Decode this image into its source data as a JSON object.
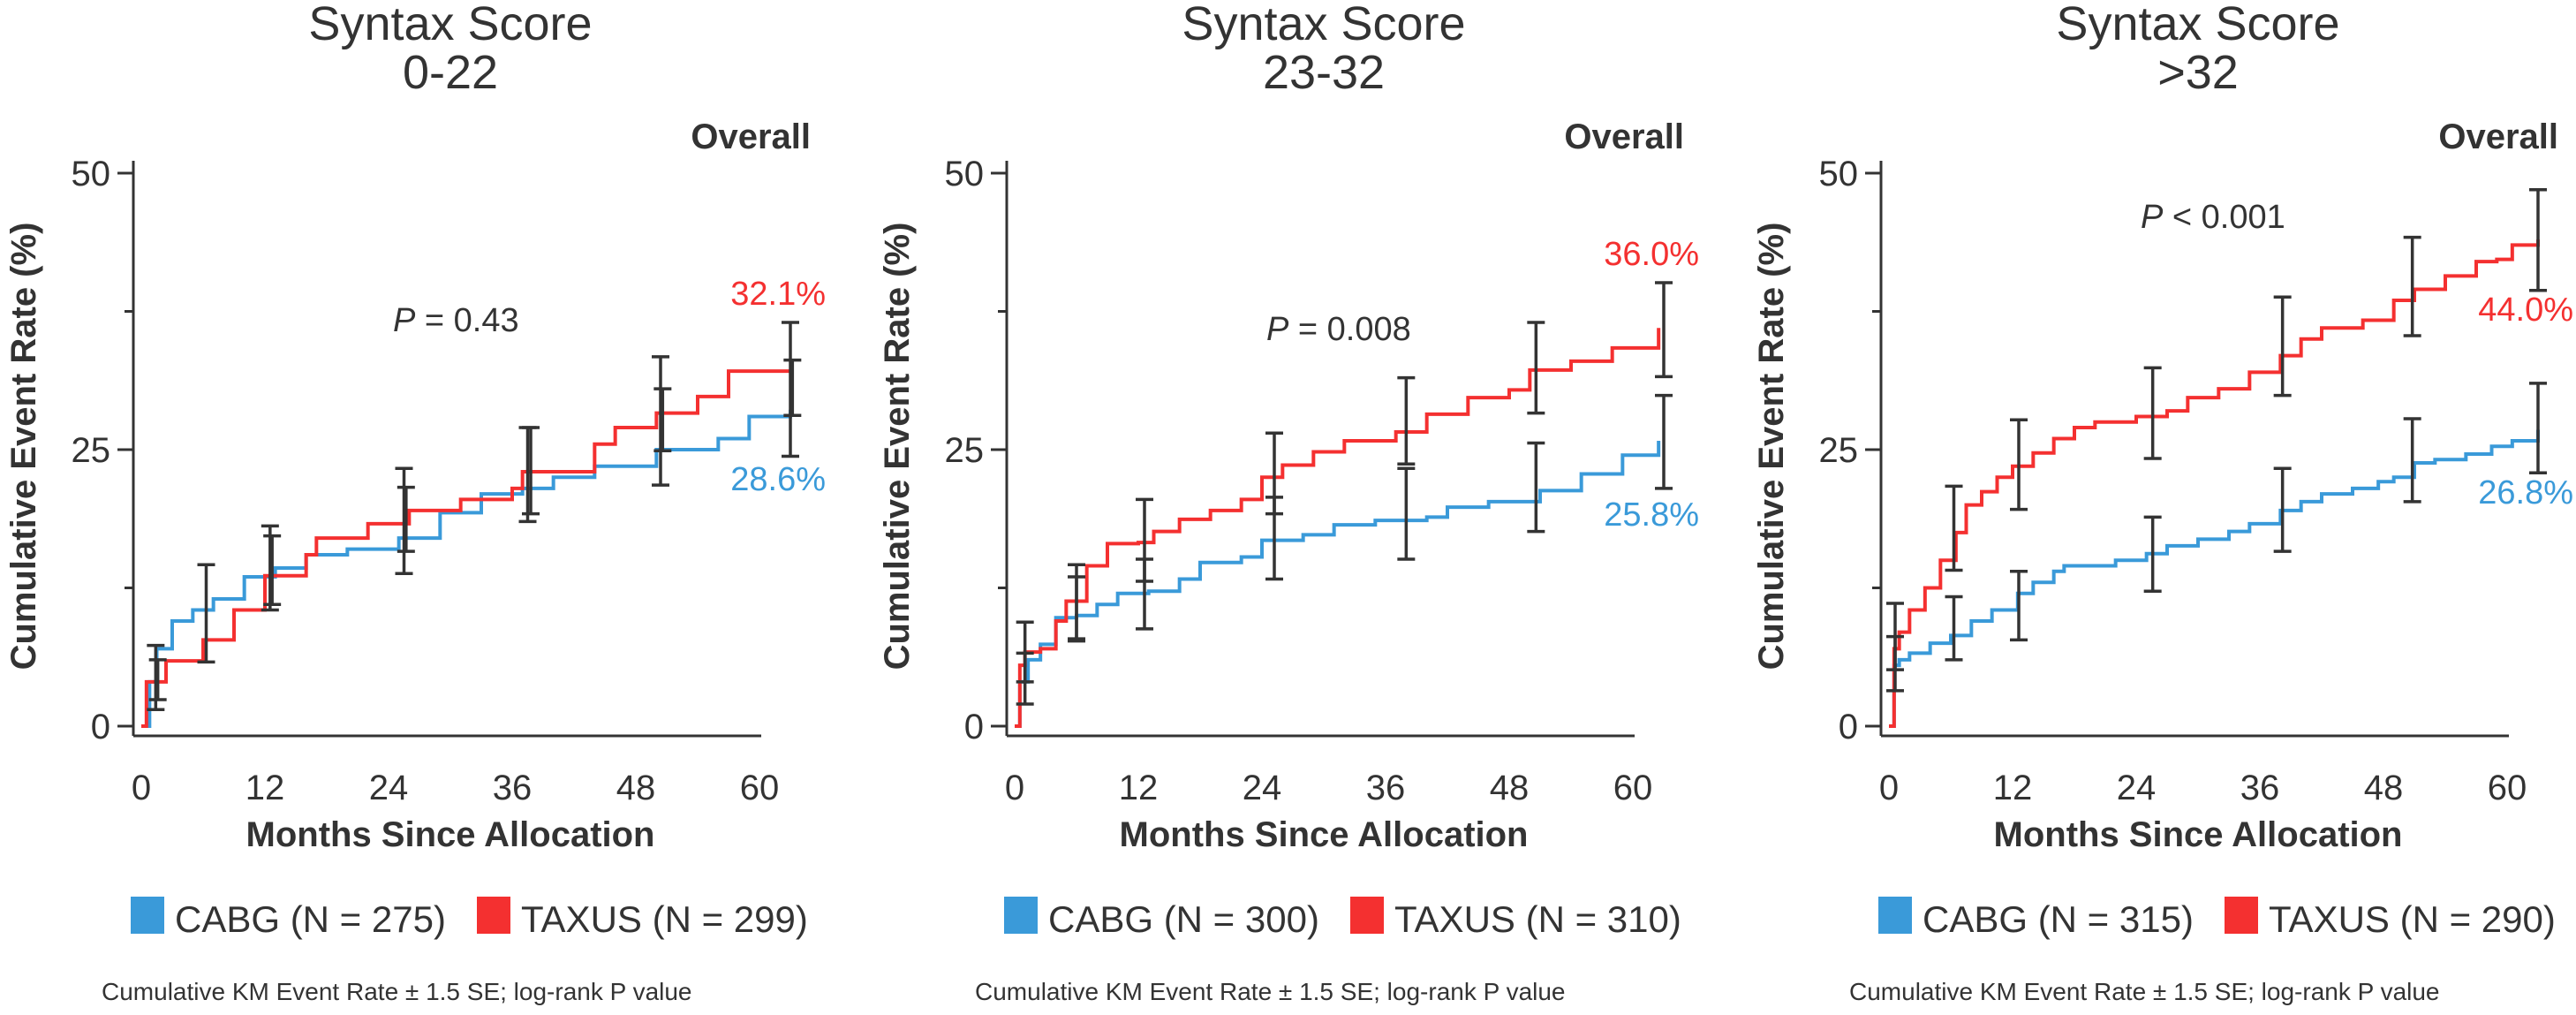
{
  "colors": {
    "cabg": "#3a9ad9",
    "taxus": "#f43030",
    "text": "#333333"
  },
  "chart_data": [
    {
      "type": "line",
      "subtype": "kaplan-meier-step",
      "title": "Syntax Score",
      "subtitle": "0-22",
      "corner_label": "Overall",
      "xlabel": "Months Since Allocation",
      "ylabel": "Cumulative Event Rate (%)",
      "xlim": [
        0,
        60
      ],
      "ylim": [
        0,
        50
      ],
      "xticks": [
        "0",
        "12",
        "24",
        "36",
        "48",
        "60"
      ],
      "xtick_values": [
        0,
        12,
        24,
        36,
        48,
        60
      ],
      "yticks": [
        "0",
        "25",
        "50"
      ],
      "ytick_values": [
        0,
        25,
        50
      ],
      "yminor_ticks": [
        12.5,
        37.5
      ],
      "p_label": "P",
      "p_text": " = 0.43",
      "legend": [
        {
          "name": "CABG (N = 275)",
          "color": "#3a9ad9"
        },
        {
          "name": "TAXUS (N = 299)",
          "color": "#f43030"
        }
      ],
      "footnote": "Cumulative KM Event Rate ± 1.5 SE; log-rank P value",
      "series": [
        {
          "name": "CABG",
          "color": "#3a9ad9",
          "end_label": "28.6%",
          "points": [
            [
              0,
              0
            ],
            [
              0.8,
              4
            ],
            [
              1.5,
              7
            ],
            [
              3,
              9.5
            ],
            [
              5,
              10.5
            ],
            [
              7,
              11.5
            ],
            [
              10,
              13.5
            ],
            [
              13,
              14.3
            ],
            [
              16,
              15.5
            ],
            [
              20,
              16
            ],
            [
              25,
              17
            ],
            [
              29,
              19.3
            ],
            [
              33,
              21
            ],
            [
              37,
              21.5
            ],
            [
              40,
              22.5
            ],
            [
              44,
              23.5
            ],
            [
              50,
              25
            ],
            [
              56,
              26
            ],
            [
              59,
              28
            ],
            [
              63,
              28.6
            ]
          ],
          "error_bars": [
            [
              1.4,
              1.5,
              7.3
            ],
            [
              6.3,
              5.8,
              14.6
            ],
            [
              12.5,
              10.5,
              18.1
            ],
            [
              25.5,
              13.8,
              23.3
            ],
            [
              37.5,
              18.5,
              27.0
            ],
            [
              50.4,
              21.8,
              33.4
            ],
            [
              63,
              24.4,
              36.5
            ]
          ]
        },
        {
          "name": "TAXUS",
          "color": "#f43030",
          "end_label": "32.1%",
          "points": [
            [
              0,
              0
            ],
            [
              0.5,
              4
            ],
            [
              2.4,
              5.9
            ],
            [
              6,
              7.8
            ],
            [
              9,
              10.5
            ],
            [
              12,
              13.6
            ],
            [
              16,
              15.5
            ],
            [
              17,
              17
            ],
            [
              22,
              18.3
            ],
            [
              26,
              19.5
            ],
            [
              31,
              20.5
            ],
            [
              36,
              21.5
            ],
            [
              37,
              23
            ],
            [
              39,
              23
            ],
            [
              44,
              25.5
            ],
            [
              46,
              27
            ],
            [
              50,
              28.3
            ],
            [
              54,
              29.8
            ],
            [
              57,
              32.1
            ],
            [
              63,
              32.1
            ]
          ],
          "error_bars": [
            [
              1.6,
              2.4,
              6.0
            ],
            [
              12.7,
              11.0,
              17.2
            ],
            [
              25.7,
              15.8,
              21.6
            ],
            [
              37.8,
              19.2,
              27.0
            ],
            [
              50.6,
              24.9,
              30.5
            ],
            [
              63.2,
              28.1,
              33.1
            ]
          ]
        }
      ]
    },
    {
      "type": "line",
      "subtype": "kaplan-meier-step",
      "title": "Syntax Score",
      "subtitle": "23-32",
      "corner_label": "Overall",
      "xlabel": "Months Since Allocation",
      "ylabel": "Cumulative Event Rate (%)",
      "xlim": [
        0,
        60
      ],
      "ylim": [
        0,
        50
      ],
      "xticks": [
        "0",
        "12",
        "24",
        "36",
        "48",
        "60"
      ],
      "xtick_values": [
        0,
        12,
        24,
        36,
        48,
        60
      ],
      "yticks": [
        "0",
        "25",
        "50"
      ],
      "ytick_values": [
        0,
        25,
        50
      ],
      "yminor_ticks": [
        12.5,
        37.5
      ],
      "p_label": "P",
      "p_text": " = 0.008",
      "legend": [
        {
          "name": "CABG (N = 300)",
          "color": "#3a9ad9"
        },
        {
          "name": "TAXUS (N = 310)",
          "color": "#f43030"
        }
      ],
      "footnote": "Cumulative KM Event Rate ± 1.5 SE; log-rank P value",
      "series": [
        {
          "name": "CABG",
          "color": "#3a9ad9",
          "end_label": "25.8%",
          "points": [
            [
              0,
              0
            ],
            [
              0.5,
              4
            ],
            [
              1.3,
              6
            ],
            [
              2.5,
              7.4
            ],
            [
              4,
              9.8
            ],
            [
              6,
              10
            ],
            [
              8,
              11
            ],
            [
              10,
              12
            ],
            [
              13,
              12.2
            ],
            [
              16,
              13.3
            ],
            [
              18,
              14.8
            ],
            [
              22,
              15.3
            ],
            [
              24,
              16.8
            ],
            [
              28,
              17.3
            ],
            [
              31,
              18.2
            ],
            [
              35,
              18.6
            ],
            [
              40,
              18.9
            ],
            [
              42,
              19.8
            ],
            [
              46,
              20.3
            ],
            [
              51,
              21.3
            ],
            [
              55,
              22.8
            ],
            [
              59,
              24.5
            ],
            [
              62.5,
              25.8
            ]
          ],
          "error_bars": [
            [
              1,
              4.0,
              6.6
            ],
            [
              6,
              7.9,
              13.5
            ],
            [
              12.6,
              13.1,
              15.1
            ],
            [
              25.2,
              19.2,
              20.7
            ],
            [
              38,
              15.1,
              23.3
            ],
            [
              50.6,
              17.6,
              25.6
            ],
            [
              63,
              21.5,
              29.9
            ]
          ]
        },
        {
          "name": "TAXUS",
          "color": "#f43030",
          "end_label": "36.0%",
          "points": [
            [
              0,
              0
            ],
            [
              0.5,
              5.5
            ],
            [
              1,
              6.7
            ],
            [
              2.5,
              7
            ],
            [
              4,
              9.5
            ],
            [
              5,
              11.3
            ],
            [
              6.5,
              11.3
            ],
            [
              7,
              14.5
            ],
            [
              9,
              16.5
            ],
            [
              12,
              16.6
            ],
            [
              13.5,
              17.6
            ],
            [
              16,
              18.7
            ],
            [
              19,
              19.5
            ],
            [
              22,
              20.5
            ],
            [
              24,
              22.5
            ],
            [
              26,
              23.6
            ],
            [
              29,
              24.8
            ],
            [
              32,
              25.8
            ],
            [
              37,
              26.6
            ],
            [
              40,
              28.2
            ],
            [
              44,
              29.7
            ],
            [
              48,
              30.4
            ],
            [
              50,
              32.2
            ],
            [
              54,
              33
            ],
            [
              58,
              34.2
            ],
            [
              62.5,
              36.0
            ]
          ],
          "error_bars": [
            [
              1,
              2.0,
              9.4
            ],
            [
              6,
              7.7,
              14.6
            ],
            [
              12.6,
              8.8,
              20.5
            ],
            [
              25.2,
              13.3,
              26.5
            ],
            [
              38,
              23.7,
              31.5
            ],
            [
              50.6,
              28.3,
              36.5
            ],
            [
              63,
              31.6,
              40.1
            ]
          ]
        }
      ]
    },
    {
      "type": "line",
      "subtype": "kaplan-meier-step",
      "title": "Syntax Score",
      "subtitle": ">32",
      "corner_label": "Overall",
      "xlabel": "Months Since Allocation",
      "ylabel": "Cumulative Event Rate (%)",
      "xlim": [
        0,
        60
      ],
      "ylim": [
        0,
        50
      ],
      "xticks": [
        "0",
        "12",
        "24",
        "36",
        "48",
        "60"
      ],
      "xtick_values": [
        0,
        12,
        24,
        36,
        48,
        60
      ],
      "yticks": [
        "0",
        "25",
        "50"
      ],
      "ytick_values": [
        0,
        25,
        50
      ],
      "yminor_ticks": [
        12.5,
        37.5
      ],
      "p_label": "P",
      "p_text": " < 0.001",
      "legend": [
        {
          "name": "CABG (N = 315)",
          "color": "#3a9ad9"
        },
        {
          "name": "TAXUS (N = 290)",
          "color": "#f43030"
        }
      ],
      "footnote": "Cumulative KM Event Rate ± 1.5 SE; log-rank P value",
      "series": [
        {
          "name": "CABG",
          "color": "#3a9ad9",
          "end_label": "26.8%",
          "points": [
            [
              0,
              0
            ],
            [
              0.5,
              5.5
            ],
            [
              1,
              6
            ],
            [
              2,
              6.6
            ],
            [
              4,
              7.5
            ],
            [
              6,
              8.2
            ],
            [
              8,
              9.5
            ],
            [
              10,
              10.5
            ],
            [
              12.5,
              12
            ],
            [
              14,
              13
            ],
            [
              16,
              14
            ],
            [
              17,
              14.5
            ],
            [
              22,
              15
            ],
            [
              25,
              15.6
            ],
            [
              27,
              16.3
            ],
            [
              30,
              16.9
            ],
            [
              33,
              17.6
            ],
            [
              35,
              18.3
            ],
            [
              38,
              19.5
            ],
            [
              40,
              20.3
            ],
            [
              42,
              21
            ],
            [
              45,
              21.5
            ],
            [
              47.5,
              22.1
            ],
            [
              49,
              22.5
            ],
            [
              51,
              23.8
            ],
            [
              53,
              24.1
            ],
            [
              56,
              24.6
            ],
            [
              58.5,
              25.3
            ],
            [
              60.5,
              25.8
            ],
            [
              63,
              26.8
            ]
          ],
          "error_bars": [
            [
              0.6,
              5.1,
              8.1
            ],
            [
              6.3,
              6.0,
              11.7
            ],
            [
              12.6,
              7.8,
              14.0
            ],
            [
              25.6,
              12.2,
              18.9
            ],
            [
              38.2,
              15.8,
              23.3
            ],
            [
              50.8,
              20.3,
              27.8
            ],
            [
              63,
              22.9,
              31.0
            ]
          ]
        },
        {
          "name": "TAXUS",
          "color": "#f43030",
          "end_label": "44.0%",
          "points": [
            [
              0,
              0
            ],
            [
              0.5,
              7
            ],
            [
              1,
              8.5
            ],
            [
              2,
              10.5
            ],
            [
              3.5,
              12.5
            ],
            [
              5,
              15
            ],
            [
              6.5,
              17.5
            ],
            [
              7.5,
              20
            ],
            [
              9,
              21.2
            ],
            [
              10.5,
              22.5
            ],
            [
              12,
              23.5
            ],
            [
              14,
              24.7
            ],
            [
              16,
              26
            ],
            [
              18,
              27
            ],
            [
              20,
              27.5
            ],
            [
              24,
              28
            ],
            [
              27,
              28.5
            ],
            [
              29,
              29.7
            ],
            [
              32,
              30.5
            ],
            [
              35,
              32
            ],
            [
              38,
              33.5
            ],
            [
              40,
              35
            ],
            [
              42,
              36
            ],
            [
              46,
              36.7
            ],
            [
              49,
              38.5
            ],
            [
              51,
              39.5
            ],
            [
              54,
              40.7
            ],
            [
              57,
              42
            ],
            [
              59,
              42.2
            ],
            [
              60.5,
              43.5
            ],
            [
              63,
              44.0
            ]
          ],
          "error_bars": [
            [
              0.6,
              3.2,
              11.1
            ],
            [
              6.3,
              14.1,
              21.7
            ],
            [
              12.6,
              19.6,
              27.7
            ],
            [
              25.6,
              24.2,
              32.4
            ],
            [
              38.2,
              29.9,
              38.8
            ],
            [
              50.8,
              35.3,
              44.2
            ],
            [
              63,
              39.4,
              48.5
            ]
          ]
        }
      ]
    }
  ]
}
